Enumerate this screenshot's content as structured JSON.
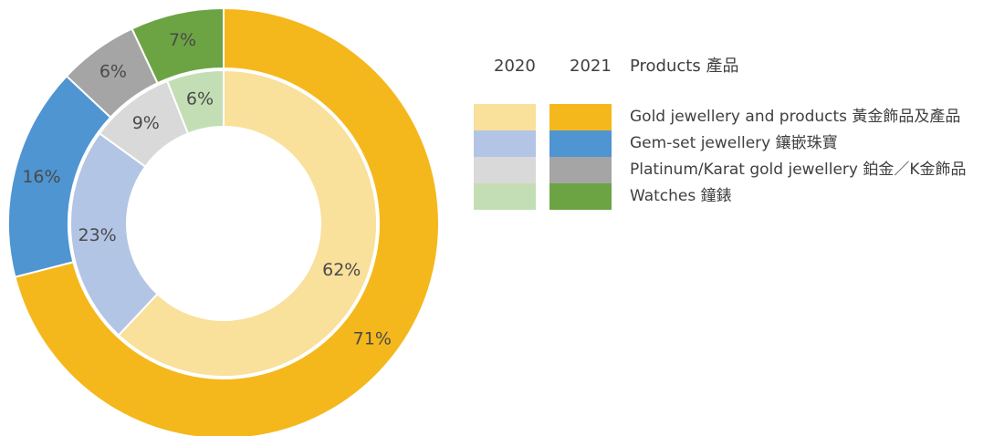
{
  "chart_data": {
    "type": "donut",
    "title": "",
    "series": [
      {
        "name": "2020",
        "values": [
          62,
          23,
          9,
          6
        ],
        "labels": [
          "62%",
          "23%",
          "9%",
          "6%"
        ],
        "colors": [
          "#f9e09b",
          "#b3c5e5",
          "#d9d9d9",
          "#c3deb4"
        ]
      },
      {
        "name": "2021",
        "values": [
          71,
          16,
          6,
          7
        ],
        "labels": [
          "71%",
          "16%",
          "6%",
          "7%"
        ],
        "colors": [
          "#f4b81c",
          "#4e95d2",
          "#a5a5a5",
          "#6ca443"
        ]
      }
    ],
    "categories": [
      "Gold jewellery and products 黃金飾品及產品",
      "Gem-set jewellery 鑲嵌珠寶",
      "Platinum/Karat gold jewellery  鉑金／K金飾品",
      "Watches 鐘錶"
    ]
  },
  "legend": {
    "header_2020": "2020",
    "header_2021": "2021",
    "header_products": "Products 產品",
    "items": [
      {
        "label": "Gold jewellery and products 黃金飾品及產品",
        "color_2020": "#f9e09b",
        "color_2021": "#f4b81c"
      },
      {
        "label": "Gem-set jewellery 鑲嵌珠寶",
        "color_2020": "#b3c5e5",
        "color_2021": "#4e95d2"
      },
      {
        "label": "Platinum/Karat gold jewellery  鉑金／K金飾品",
        "color_2020": "#d9d9d9",
        "color_2021": "#a5a5a5"
      },
      {
        "label": "Watches 鐘錶",
        "color_2020": "#c3deb4",
        "color_2021": "#6ca443"
      }
    ]
  }
}
